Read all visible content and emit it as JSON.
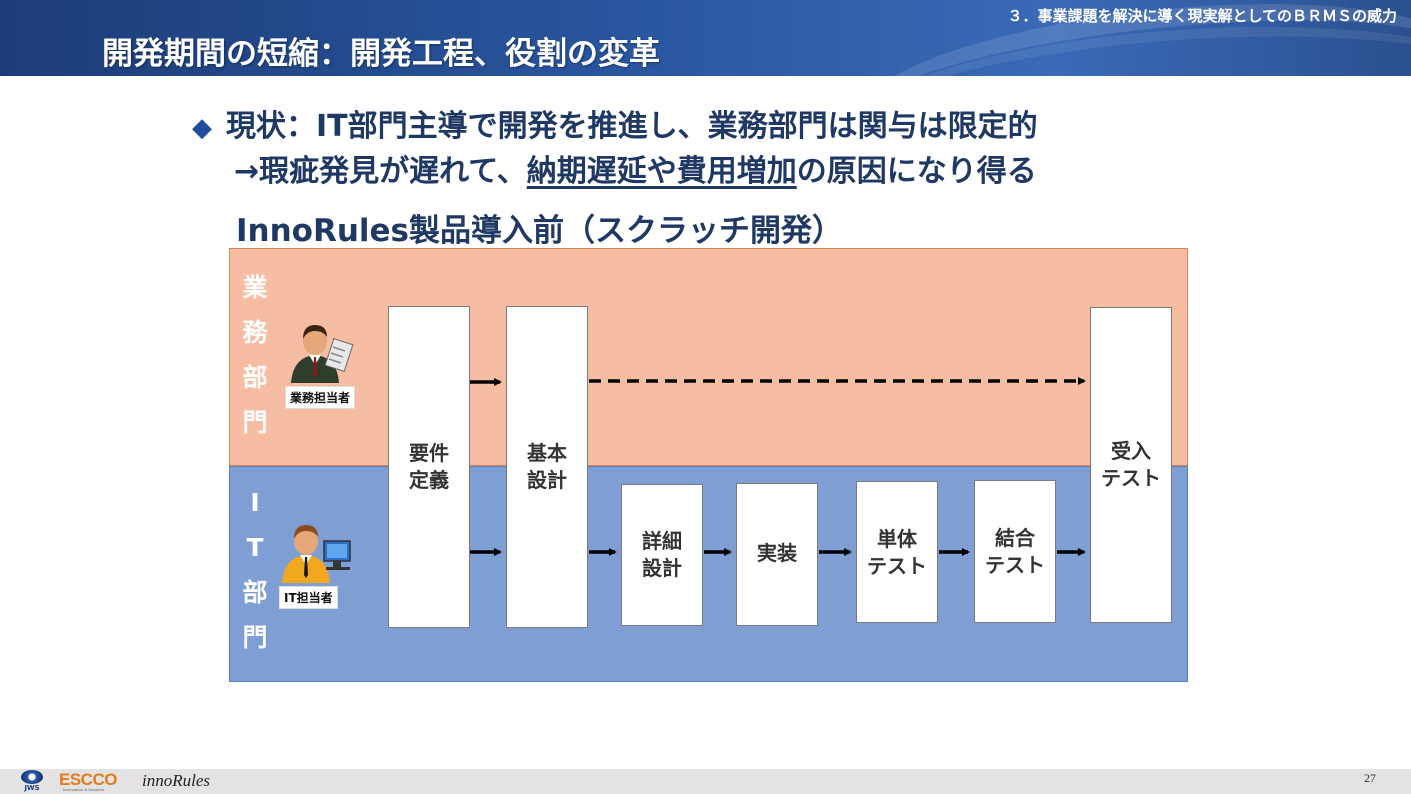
{
  "header": {
    "section_label": "３．事業課題を解決に導く現実解としてのＢＲＭＳの威力",
    "title": "開発期間の短縮：開発工程、役割の変革"
  },
  "content": {
    "bullet_symbol": "◆",
    "bullet_line1": "現状：IT部門主導で開発を推進し、業務部門は関与は限定的",
    "line2_prefix": "→瑕疵発見が遅れて、",
    "line2_underlined": "納期遅延や費用増加",
    "line2_suffix": "の原因になり得る",
    "subtitle": "InnoRules製品導入前（スクラッチ開発）"
  },
  "diagram": {
    "lanes": {
      "business": {
        "chars": [
          "業",
          "務",
          "部",
          "門"
        ],
        "color": "#f7bda3",
        "role_tag": "業務担当者"
      },
      "it": {
        "chars": [
          "I",
          "T",
          "部",
          "門"
        ],
        "color": "#7f9fd4",
        "role_tag": "IT担当者"
      }
    },
    "steps": {
      "requirements": [
        "要件",
        "定義"
      ],
      "basic_design": [
        "基本",
        "設計"
      ],
      "detailed_design": [
        "詳細",
        "設計"
      ],
      "implementation": [
        "実装"
      ],
      "unit_test": [
        "単体",
        "テスト"
      ],
      "integration_test": [
        "結合",
        "テスト"
      ],
      "acceptance_test": [
        "受入",
        "テスト"
      ]
    }
  },
  "footer": {
    "logo_jws": "JWS",
    "logo_escco": "ESCCO",
    "logo_escco_tagline": "Innovation & Solution",
    "logo_inno": "innoRules",
    "page_number": "27"
  }
}
